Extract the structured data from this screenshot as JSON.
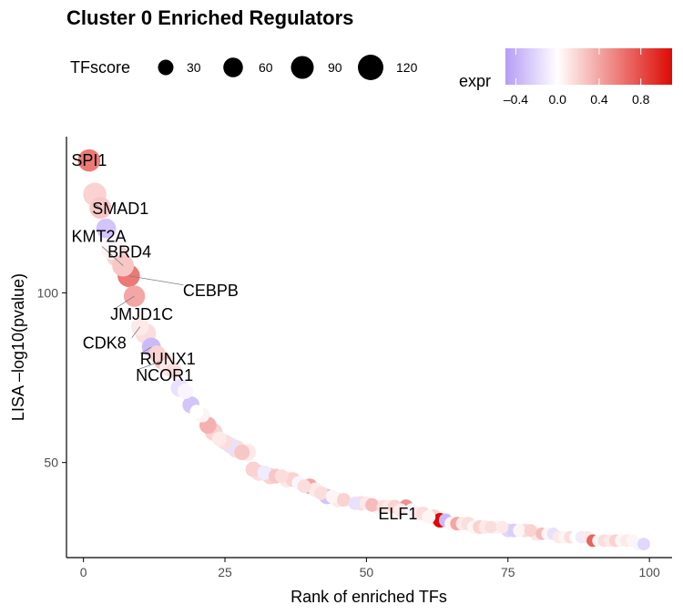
{
  "chart_data": {
    "type": "scatter",
    "title": "Cluster 0 Enriched Regulators",
    "xlabel": "Rank of enriched TFs",
    "ylabel": "LISA –log10(pvalue)",
    "xlim": [
      -3,
      104
    ],
    "ylim": [
      22,
      146
    ],
    "x_ticks": [
      0,
      25,
      50,
      75,
      100
    ],
    "y_ticks": [
      50,
      100
    ],
    "grid": false,
    "size_legend": {
      "title": "TFscore",
      "values": [
        30,
        60,
        90,
        120
      ],
      "labels": [
        "30",
        "60",
        "90",
        "120"
      ]
    },
    "color_legend": {
      "title": "expr",
      "range": [
        -0.5,
        1.1
      ],
      "tick_values": [
        -0.4,
        0.0,
        0.4,
        0.8
      ],
      "tick_labels": [
        "–0.4",
        "0.0",
        "0.4",
        "0.8"
      ],
      "low_color": "#b59cf5",
      "mid_color": "#ffffff",
      "high_color": "#dd0a04"
    },
    "points": [
      {
        "x": 1,
        "y": 139,
        "score": 85,
        "expr": 0.6
      },
      {
        "x": 2,
        "y": 129,
        "score": 95,
        "expr": 0.2
      },
      {
        "x": 3,
        "y": 125,
        "score": 80,
        "expr": 0.25
      },
      {
        "x": 4,
        "y": 119,
        "score": 60,
        "expr": -0.3
      },
      {
        "x": 4.5,
        "y": 117,
        "score": 75,
        "expr": -0.05
      },
      {
        "x": 5,
        "y": 113,
        "score": 80,
        "expr": 0.05
      },
      {
        "x": 6,
        "y": 111,
        "score": 85,
        "expr": 0.2
      },
      {
        "x": 7,
        "y": 108,
        "score": 80,
        "expr": 0.25
      },
      {
        "x": 8,
        "y": 105,
        "score": 85,
        "expr": 0.6
      },
      {
        "x": 9,
        "y": 99,
        "score": 75,
        "expr": 0.4
      },
      {
        "x": 10,
        "y": 90,
        "score": 45,
        "expr": 0.1
      },
      {
        "x": 11,
        "y": 88,
        "score": 70,
        "expr": 0.15
      },
      {
        "x": 12,
        "y": 84,
        "score": 55,
        "expr": -0.35
      },
      {
        "x": 13,
        "y": 82,
        "score": 40,
        "expr": 0.2
      },
      {
        "x": 14,
        "y": 80,
        "score": 45,
        "expr": 0.3
      },
      {
        "x": 15,
        "y": 78,
        "score": 45,
        "expr": 0.1
      },
      {
        "x": 16,
        "y": 77,
        "score": 30,
        "expr": 0.15
      },
      {
        "x": 17,
        "y": 72,
        "score": 45,
        "expr": -0.15
      },
      {
        "x": 18,
        "y": 71,
        "score": 30,
        "expr": -0.05
      },
      {
        "x": 19,
        "y": 67,
        "score": 40,
        "expr": -0.3
      },
      {
        "x": 20,
        "y": 65,
        "score": 20,
        "expr": 0.0
      },
      {
        "x": 21,
        "y": 64,
        "score": 25,
        "expr": 0.05
      },
      {
        "x": 22,
        "y": 61,
        "score": 40,
        "expr": 0.35
      },
      {
        "x": 23,
        "y": 59,
        "score": 45,
        "expr": 0.2
      },
      {
        "x": 24,
        "y": 57,
        "score": 25,
        "expr": 0.1
      },
      {
        "x": 25,
        "y": 56,
        "score": 30,
        "expr": 0.15
      },
      {
        "x": 26,
        "y": 55,
        "score": 35,
        "expr": -0.15
      },
      {
        "x": 27,
        "y": 54,
        "score": 45,
        "expr": 0.15
      },
      {
        "x": 28,
        "y": 53,
        "score": 30,
        "expr": 0.25
      },
      {
        "x": 29,
        "y": 53,
        "score": 40,
        "expr": 0.1
      },
      {
        "x": 30,
        "y": 48,
        "score": 30,
        "expr": 0.2
      },
      {
        "x": 31,
        "y": 47,
        "score": 35,
        "expr": 0.15
      },
      {
        "x": 32,
        "y": 47,
        "score": 25,
        "expr": -0.1
      },
      {
        "x": 33,
        "y": 46,
        "score": 35,
        "expr": 0.2
      },
      {
        "x": 34,
        "y": 46,
        "score": 25,
        "expr": 0.25
      },
      {
        "x": 35,
        "y": 46,
        "score": 20,
        "expr": 0.15
      },
      {
        "x": 36,
        "y": 45,
        "score": 35,
        "expr": 0.1
      },
      {
        "x": 37,
        "y": 45,
        "score": 25,
        "expr": 0.2
      },
      {
        "x": 38,
        "y": 44,
        "score": 20,
        "expr": -0.05
      },
      {
        "x": 39,
        "y": 43,
        "score": 20,
        "expr": 0.15
      },
      {
        "x": 40,
        "y": 43,
        "score": 30,
        "expr": 0.4
      },
      {
        "x": 41,
        "y": 42,
        "score": 25,
        "expr": 0.1
      },
      {
        "x": 42,
        "y": 41,
        "score": 20,
        "expr": 0.15
      },
      {
        "x": 43,
        "y": 40,
        "score": 30,
        "expr": -0.3
      },
      {
        "x": 44,
        "y": 40,
        "score": 20,
        "expr": 0.05
      },
      {
        "x": 45,
        "y": 39,
        "score": 25,
        "expr": 0.1
      },
      {
        "x": 46,
        "y": 39,
        "score": 20,
        "expr": 0.2
      },
      {
        "x": 47,
        "y": 39,
        "score": 25,
        "expr": 0.0
      },
      {
        "x": 48,
        "y": 38,
        "score": 20,
        "expr": -0.15
      },
      {
        "x": 49,
        "y": 38,
        "score": 25,
        "expr": 0.15
      },
      {
        "x": 50,
        "y": 38,
        "score": 20,
        "expr": 0.1
      },
      {
        "x": 51,
        "y": 37.5,
        "score": 20,
        "expr": 0.3
      },
      {
        "x": 52,
        "y": 37,
        "score": 25,
        "expr": 0.05
      },
      {
        "x": 53,
        "y": 37,
        "score": 20,
        "expr": 0.15
      },
      {
        "x": 54,
        "y": 37,
        "score": 20,
        "expr": 0.1
      },
      {
        "x": 55,
        "y": 37,
        "score": 20,
        "expr": 0.2
      },
      {
        "x": 56,
        "y": 36,
        "score": 20,
        "expr": 0.1
      },
      {
        "x": 57,
        "y": 37,
        "score": 25,
        "expr": 0.5
      },
      {
        "x": 58,
        "y": 36,
        "score": 20,
        "expr": -0.05
      },
      {
        "x": 59,
        "y": 35,
        "score": 20,
        "expr": 0.1
      },
      {
        "x": 60,
        "y": 35,
        "score": 20,
        "expr": 0.15
      },
      {
        "x": 61,
        "y": 34,
        "score": 20,
        "expr": 0.05
      },
      {
        "x": 62,
        "y": 34,
        "score": 25,
        "expr": 0.2
      },
      {
        "x": 63,
        "y": 33,
        "score": 25,
        "expr": 1.1
      },
      {
        "x": 64,
        "y": 33,
        "score": 20,
        "expr": -0.35
      },
      {
        "x": 65,
        "y": 32,
        "score": 20,
        "expr": 0.05
      },
      {
        "x": 66,
        "y": 32,
        "score": 20,
        "expr": 0.4
      },
      {
        "x": 67,
        "y": 32,
        "score": 20,
        "expr": 0.1
      },
      {
        "x": 68,
        "y": 32,
        "score": 20,
        "expr": 0.15
      },
      {
        "x": 69,
        "y": 31,
        "score": 20,
        "expr": 0.05
      },
      {
        "x": 70,
        "y": 31,
        "score": 20,
        "expr": 0.2
      },
      {
        "x": 71,
        "y": 31,
        "score": 20,
        "expr": 0.1
      },
      {
        "x": 72,
        "y": 31,
        "score": 15,
        "expr": 0.15
      },
      {
        "x": 73,
        "y": 31,
        "score": 20,
        "expr": 0.05
      },
      {
        "x": 74,
        "y": 31,
        "score": 15,
        "expr": 0.1
      },
      {
        "x": 75,
        "y": 30,
        "score": 20,
        "expr": -0.2
      },
      {
        "x": 76,
        "y": 30,
        "score": 20,
        "expr": -0.25
      },
      {
        "x": 77,
        "y": 30,
        "score": 15,
        "expr": 0.05
      },
      {
        "x": 78,
        "y": 30,
        "score": 20,
        "expr": 0.15
      },
      {
        "x": 79,
        "y": 30,
        "score": 15,
        "expr": 0.2
      },
      {
        "x": 80,
        "y": 29,
        "score": 20,
        "expr": 0.1
      },
      {
        "x": 81,
        "y": 29,
        "score": 15,
        "expr": 0.3
      },
      {
        "x": 82,
        "y": 29,
        "score": 15,
        "expr": 0.05
      },
      {
        "x": 83,
        "y": 29,
        "score": 15,
        "expr": -0.15
      },
      {
        "x": 84,
        "y": 28,
        "score": 15,
        "expr": 0.1
      },
      {
        "x": 85,
        "y": 28,
        "score": 15,
        "expr": 0.05
      },
      {
        "x": 86,
        "y": 28,
        "score": 15,
        "expr": 0.15
      },
      {
        "x": 87,
        "y": 28,
        "score": 15,
        "expr": 0.0
      },
      {
        "x": 88,
        "y": 28,
        "score": 15,
        "expr": -0.1
      },
      {
        "x": 89,
        "y": 28,
        "score": 15,
        "expr": 0.1
      },
      {
        "x": 90,
        "y": 27,
        "score": 15,
        "expr": 0.7
      },
      {
        "x": 91,
        "y": 27,
        "score": 15,
        "expr": 0.05
      },
      {
        "x": 92,
        "y": 27,
        "score": 15,
        "expr": 0.15
      },
      {
        "x": 93,
        "y": 27,
        "score": 15,
        "expr": 0.1
      },
      {
        "x": 94,
        "y": 27,
        "score": 15,
        "expr": 0.2
      },
      {
        "x": 95,
        "y": 27,
        "score": 15,
        "expr": 0.05
      },
      {
        "x": 96,
        "y": 27,
        "score": 15,
        "expr": 0.1
      },
      {
        "x": 97,
        "y": 27,
        "score": 15,
        "expr": 0.05
      },
      {
        "x": 98,
        "y": 26,
        "score": 15,
        "expr": -0.05
      },
      {
        "x": 99,
        "y": 26,
        "score": 15,
        "expr": -0.2
      }
    ],
    "annotations": [
      {
        "text": "SPI1",
        "x": 1,
        "y": 139
      },
      {
        "text": "SMAD1",
        "x": 3,
        "y": 125
      },
      {
        "text": "KMT2A",
        "x": 4,
        "y": 119
      },
      {
        "text": "BRD4",
        "x": 7,
        "y": 108
      },
      {
        "text": "CEBPB",
        "x": 8,
        "y": 105
      },
      {
        "text": "JMJD1C",
        "x": 9,
        "y": 99
      },
      {
        "text": "CDK8",
        "x": 10,
        "y": 90
      },
      {
        "text": "RUNX1",
        "x": 12,
        "y": 84
      },
      {
        "text": "NCOR1",
        "x": 14,
        "y": 80
      },
      {
        "text": "ELF1",
        "x": 57,
        "y": 37
      }
    ]
  }
}
